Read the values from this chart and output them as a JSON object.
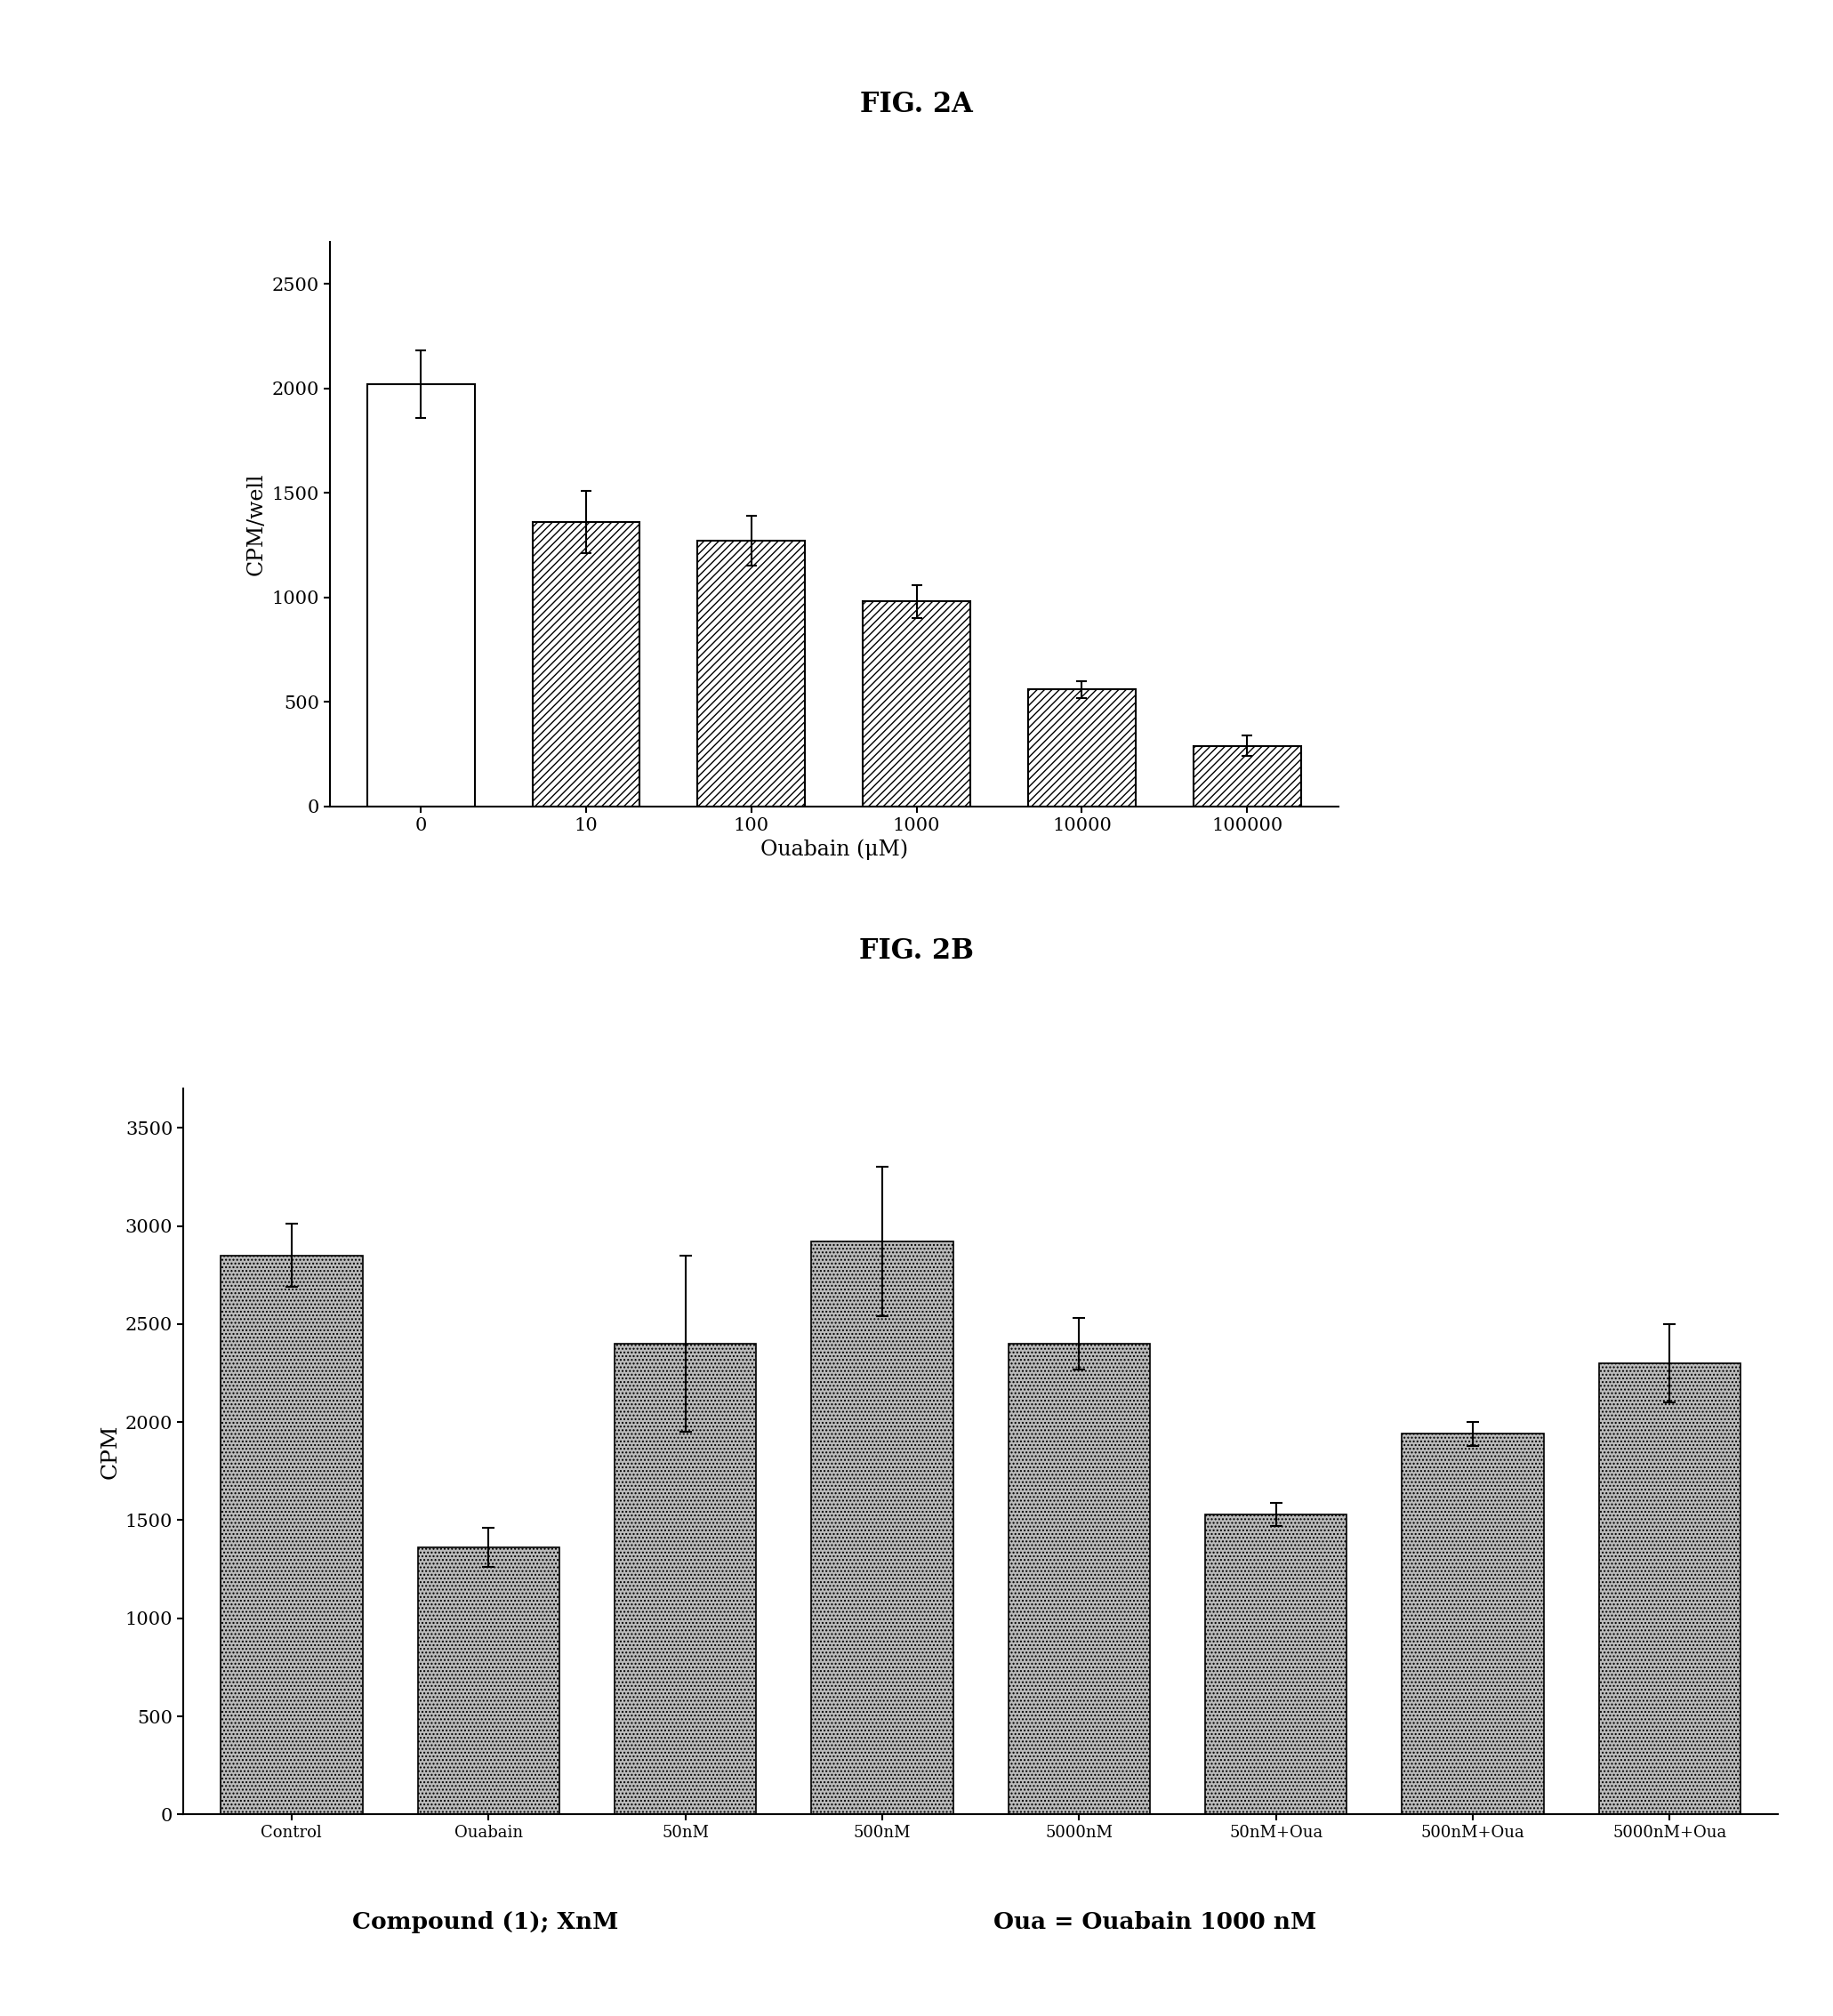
{
  "fig2a": {
    "title": "FIG. 2A",
    "categories": [
      "0",
      "10",
      "100",
      "1000",
      "10000",
      "100000"
    ],
    "values": [
      2020,
      1360,
      1270,
      980,
      560,
      290
    ],
    "errors": [
      160,
      150,
      120,
      80,
      40,
      50
    ],
    "ylabel": "CPM/well",
    "xlabel": "Ouabain (μM)",
    "ylim": [
      0,
      2700
    ],
    "yticks": [
      0,
      500,
      1000,
      1500,
      2000,
      2500
    ]
  },
  "fig2b": {
    "title": "FIG. 2B",
    "categories": [
      "Control",
      "Ouabain",
      "50nM",
      "500nM",
      "5000nM",
      "50nM+Oua",
      "500nM+Oua",
      "5000nM+Oua"
    ],
    "values": [
      2850,
      1360,
      2400,
      2920,
      2400,
      1530,
      1940,
      2300
    ],
    "errors": [
      160,
      100,
      450,
      380,
      130,
      60,
      60,
      200
    ],
    "ylabel": "CPM",
    "xlabel_line1": "Compound (1); XnM",
    "xlabel_line2": "Oua = Ouabain 1000 nM",
    "ylim": [
      0,
      3700
    ],
    "yticks": [
      0,
      500,
      1000,
      1500,
      2000,
      2500,
      3000,
      3500
    ]
  },
  "background_color": "#ffffff"
}
